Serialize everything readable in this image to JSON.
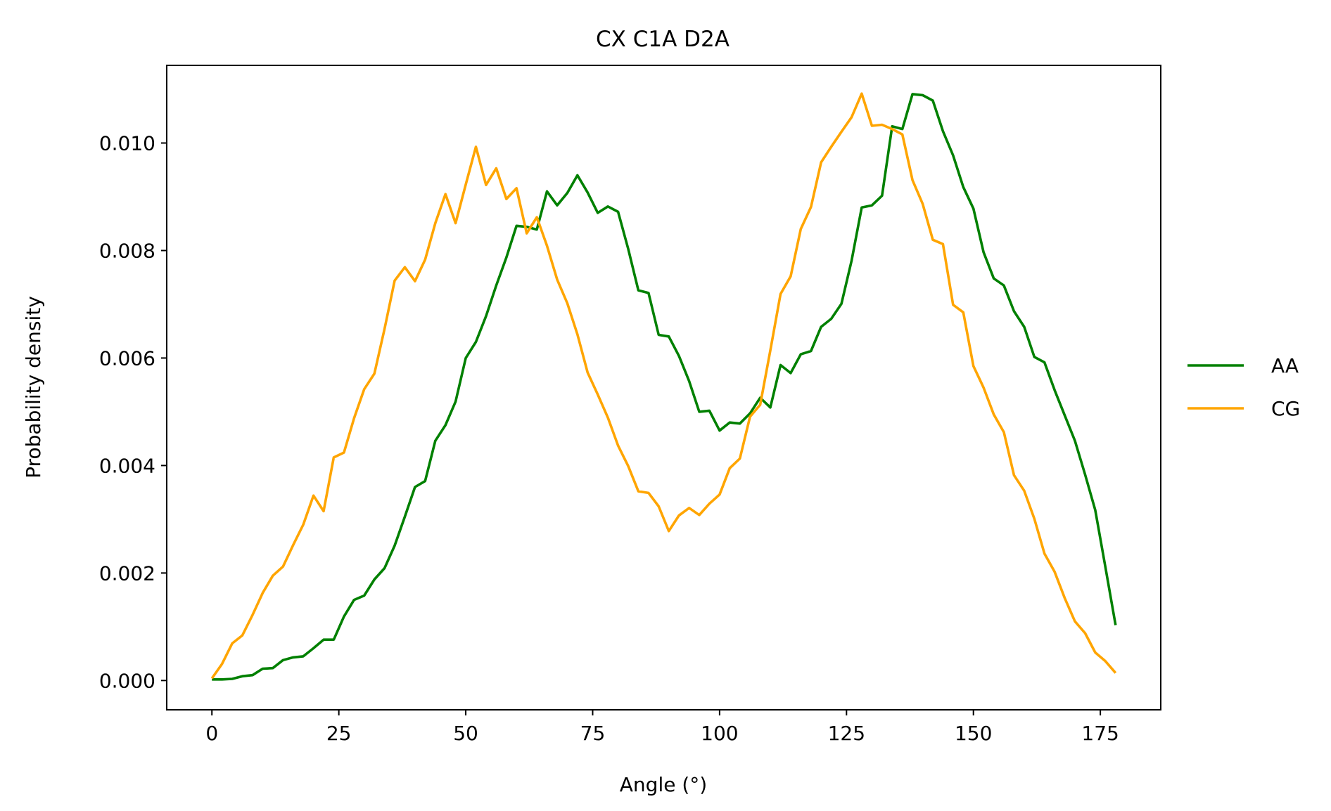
{
  "chart_data": {
    "type": "line",
    "title": "CX C1A D2A",
    "xlabel": "Angle (°)",
    "ylabel": "Probability density",
    "xlim": [
      -8.9,
      186.9
    ],
    "ylim": [
      -0.000545,
      0.011445
    ],
    "x_ticks": [
      0,
      25,
      50,
      75,
      100,
      125,
      150,
      175
    ],
    "x_tick_labels": [
      "0",
      "25",
      "50",
      "75",
      "100",
      "125",
      "150",
      "175"
    ],
    "y_ticks": [
      0,
      0.002,
      0.004,
      0.006,
      0.008,
      0.01
    ],
    "y_tick_labels": [
      "0.000",
      "0.002",
      "0.004",
      "0.006",
      "0.008",
      "0.010"
    ],
    "grid": false,
    "legend_position": "outside-right",
    "x": [
      0,
      2,
      4,
      6,
      8,
      10,
      12,
      14,
      16,
      18,
      20,
      22,
      24,
      26,
      28,
      30,
      32,
      34,
      36,
      38,
      40,
      42,
      44,
      46,
      48,
      50,
      52,
      54,
      56,
      58,
      60,
      62,
      64,
      66,
      68,
      70,
      72,
      74,
      76,
      78,
      80,
      82,
      84,
      86,
      88,
      90,
      92,
      94,
      96,
      98,
      100,
      102,
      104,
      106,
      108,
      110,
      112,
      114,
      116,
      118,
      120,
      122,
      124,
      126,
      128,
      130,
      132,
      134,
      136,
      138,
      140,
      142,
      144,
      146,
      148,
      150,
      152,
      154,
      156,
      158,
      160,
      162,
      164,
      166,
      168,
      170,
      172,
      174,
      176,
      178
    ],
    "series": [
      {
        "name": "AA",
        "color": "#008000",
        "values": [
          2e-05,
          2e-05,
          3e-05,
          8e-05,
          0.0001,
          0.00022,
          0.00023,
          0.00038,
          0.00043,
          0.00045,
          0.0006,
          0.00076,
          0.00076,
          0.00119,
          0.0015,
          0.00158,
          0.00188,
          0.00209,
          0.00251,
          0.00305,
          0.0036,
          0.00371,
          0.00446,
          0.00475,
          0.00519,
          0.006,
          0.0063,
          0.00678,
          0.00735,
          0.00787,
          0.00846,
          0.00844,
          0.00839,
          0.0091,
          0.00884,
          0.00907,
          0.0094,
          0.00908,
          0.0087,
          0.00882,
          0.00872,
          0.00803,
          0.00726,
          0.00721,
          0.00643,
          0.0064,
          0.00604,
          0.00557,
          0.005,
          0.00502,
          0.00465,
          0.0048,
          0.00478,
          0.00497,
          0.00526,
          0.00508,
          0.00587,
          0.00572,
          0.00607,
          0.00613,
          0.00658,
          0.00673,
          0.00701,
          0.00781,
          0.0088,
          0.00884,
          0.00902,
          0.01031,
          0.01026,
          0.01091,
          0.01089,
          0.01079,
          0.01022,
          0.00977,
          0.00918,
          0.00878,
          0.00797,
          0.00748,
          0.00735,
          0.00687,
          0.00658,
          0.00602,
          0.00592,
          0.0054,
          0.00493,
          0.00446,
          0.00383,
          0.00317,
          0.00211,
          0.00103
        ]
      },
      {
        "name": "CG",
        "color": "#FFA500",
        "values": [
          4e-05,
          0.00031,
          0.00069,
          0.00084,
          0.00122,
          0.00163,
          0.00195,
          0.00212,
          0.00252,
          0.0029,
          0.00344,
          0.00315,
          0.00415,
          0.00424,
          0.00488,
          0.00542,
          0.00571,
          0.00654,
          0.00744,
          0.00769,
          0.00743,
          0.00783,
          0.00851,
          0.00905,
          0.00851,
          0.00923,
          0.00993,
          0.00922,
          0.00953,
          0.00896,
          0.00916,
          0.00832,
          0.00862,
          0.00809,
          0.00746,
          0.00702,
          0.00644,
          0.00573,
          0.00532,
          0.00489,
          0.00437,
          0.00399,
          0.00352,
          0.00349,
          0.00324,
          0.00278,
          0.00307,
          0.00321,
          0.00308,
          0.00329,
          0.00346,
          0.00395,
          0.00413,
          0.00491,
          0.00513,
          0.00614,
          0.00719,
          0.00752,
          0.0084,
          0.00881,
          0.00964,
          0.00993,
          0.01021,
          0.01048,
          0.01092,
          0.01032,
          0.01034,
          0.01026,
          0.01016,
          0.00931,
          0.00887,
          0.0082,
          0.00812,
          0.00699,
          0.00685,
          0.00585,
          0.00545,
          0.00495,
          0.00462,
          0.00382,
          0.00353,
          0.00301,
          0.00236,
          0.00202,
          0.00153,
          0.0011,
          0.00088,
          0.00052,
          0.00036,
          0.00014
        ]
      }
    ]
  }
}
